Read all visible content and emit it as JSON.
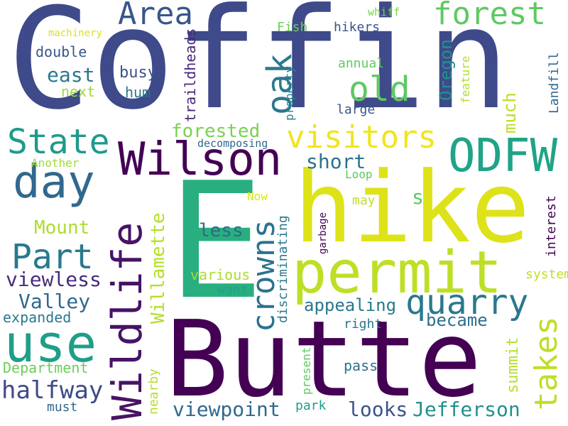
{
  "words": [
    {
      "text": "Coffin",
      "color": "#3e4a89"
    },
    {
      "text": "Butte",
      "color": "#440154"
    },
    {
      "text": "hike",
      "color": "#dde318"
    },
    {
      "text": "E",
      "color": "#29af7f"
    },
    {
      "text": "permit",
      "color": "#bddf26"
    },
    {
      "text": "Wildlife",
      "color": "#471365"
    },
    {
      "text": "Wilson",
      "color": "#440154"
    },
    {
      "text": "ODFW",
      "color": "#20a386"
    },
    {
      "text": "use",
      "color": "#1f9e89"
    },
    {
      "text": "day",
      "color": "#31688e"
    },
    {
      "text": "State",
      "color": "#1f9a8a"
    },
    {
      "text": "Part",
      "color": "#2a788e"
    },
    {
      "text": "Area",
      "color": "#39568c"
    },
    {
      "text": "forest",
      "color": "#5ec962"
    },
    {
      "text": "visitors",
      "color": "#f1e51d"
    },
    {
      "text": "oak",
      "color": "#2a788e"
    },
    {
      "text": "old",
      "color": "#5ec962"
    },
    {
      "text": "quarry",
      "color": "#2a788e"
    },
    {
      "text": "crowns",
      "color": "#2c728e"
    },
    {
      "text": "takes",
      "color": "#bddf26"
    },
    {
      "text": "halfway",
      "color": "#3e4a89"
    },
    {
      "text": "viewpoint",
      "color": "#31688e"
    },
    {
      "text": "looks",
      "color": "#3b528b"
    },
    {
      "text": "Jefferson",
      "color": "#21918c"
    },
    {
      "text": "forested",
      "color": "#7ad151"
    },
    {
      "text": "short",
      "color": "#2c728e"
    },
    {
      "text": "viewless",
      "color": "#472d7b"
    },
    {
      "text": "Valley",
      "color": "#31688e"
    },
    {
      "text": "Mount",
      "color": "#addc30"
    },
    {
      "text": "Willamette",
      "color": "#b5de2b"
    },
    {
      "text": "appealing",
      "color": "#2a788e"
    },
    {
      "text": "became",
      "color": "#2d708e"
    },
    {
      "text": "summit",
      "color": "#b5de2b"
    },
    {
      "text": "east",
      "color": "#2a788e"
    },
    {
      "text": "double",
      "color": "#39568c"
    },
    {
      "text": "less",
      "color": "#31688e"
    },
    {
      "text": "busy",
      "color": "#3b528b"
    },
    {
      "text": "hum",
      "color": "#2a788e"
    },
    {
      "text": "next",
      "color": "#a0da39"
    },
    {
      "text": "much",
      "color": "#bddf26"
    },
    {
      "text": "Oregon",
      "color": "#21918c"
    },
    {
      "text": "traildheads",
      "color": "#482878"
    },
    {
      "text": "expanded",
      "color": "#2a788e"
    },
    {
      "text": "Department",
      "color": "#6ccd5a"
    },
    {
      "text": "must",
      "color": "#31688e"
    },
    {
      "text": "pass",
      "color": "#2c728e"
    },
    {
      "text": "right",
      "color": "#2a788e"
    },
    {
      "text": "want",
      "color": "#1fa188"
    },
    {
      "text": "various",
      "color": "#addc30"
    },
    {
      "text": "discriminating",
      "color": "#2a788e"
    },
    {
      "text": "nearby",
      "color": "#b5de2b"
    },
    {
      "text": "present",
      "color": "#5ec962"
    },
    {
      "text": "park",
      "color": "#1f9e89"
    },
    {
      "text": "interest",
      "color": "#440154"
    },
    {
      "text": "system",
      "color": "#c2df23"
    },
    {
      "text": "garbage",
      "color": "#440154"
    },
    {
      "text": "may",
      "color": "#c2df23"
    },
    {
      "text": "s",
      "color": "#5ec962"
    },
    {
      "text": "Loop",
      "color": "#5ec962"
    },
    {
      "text": "Now",
      "color": "#dde318"
    },
    {
      "text": "decomposing",
      "color": "#31688e"
    },
    {
      "text": "Another",
      "color": "#a0da39"
    },
    {
      "text": "hikers",
      "color": "#3b528b"
    },
    {
      "text": "Fish",
      "color": "#6ccd5a"
    },
    {
      "text": "whiff",
      "color": "#7ad151"
    },
    {
      "text": "machinery",
      "color": "#dde318"
    },
    {
      "text": "annual",
      "color": "#5ec962"
    },
    {
      "text": "large",
      "color": "#39568c"
    },
    {
      "text": "property",
      "color": "#26828e"
    },
    {
      "text": "feature",
      "color": "#b5de2b"
    },
    {
      "text": "Landfill",
      "color": "#31688e"
    }
  ]
}
